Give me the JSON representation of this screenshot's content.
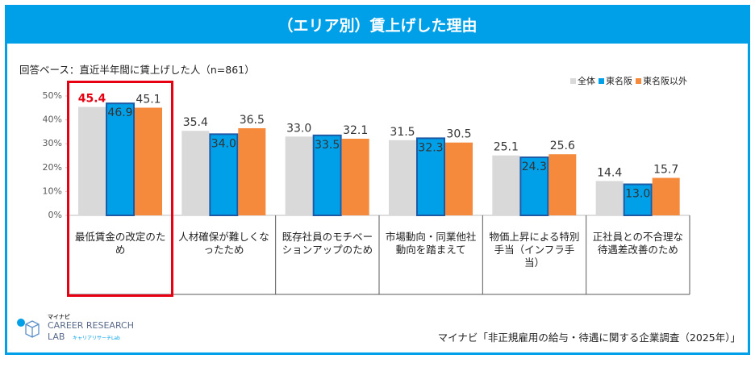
{
  "header": {
    "title": "（エリア別）賃上げした理由",
    "subtitle": "回答ベース：直近半年間に賃上げした人（n=861）"
  },
  "chart_data": {
    "type": "bar",
    "categories": [
      "最低賃金の改定のため",
      "人材確保が難しくなったため",
      "既存社員のモチベーションアップのため",
      "市場動向・同業他社動向を踏まえて",
      "物価上昇による特別手当（インフラ手当）",
      "正社員との不合理な待遇差改善のため"
    ],
    "series": [
      {
        "name": "全体",
        "color": "#d9d9d9",
        "values": [
          45.4,
          35.4,
          33.0,
          31.5,
          25.1,
          14.4
        ],
        "value_labels": [
          "45.4",
          "35.4",
          "33.0",
          "31.5",
          "25.1",
          "14.4"
        ],
        "label_position": "above"
      },
      {
        "name": "東名阪",
        "color": "#00a0e9",
        "edgecolor": "#1d5aa6",
        "values": [
          46.9,
          34.0,
          33.5,
          32.3,
          24.3,
          13.0
        ],
        "value_labels": [
          "46.9",
          "34.0",
          "33.5",
          "32.3",
          "24.3",
          "13.0"
        ],
        "label_position": "inside"
      },
      {
        "name": "東名阪以外",
        "color": "#f58a3c",
        "values": [
          45.1,
          36.5,
          32.1,
          30.5,
          25.6,
          15.7
        ],
        "value_labels": [
          "45.1",
          "36.5",
          "32.1",
          "30.5",
          "25.6",
          "15.7"
        ],
        "label_position": "above"
      }
    ],
    "ylim": [
      0,
      50
    ],
    "yticks": [
      {
        "value": 0,
        "label": "0%"
      },
      {
        "value": 10,
        "label": "10%"
      },
      {
        "value": 20,
        "label": "20%"
      },
      {
        "value": 30,
        "label": "30%"
      },
      {
        "value": 40,
        "label": "40%"
      },
      {
        "value": 50,
        "label": "50%"
      }
    ],
    "legend": "upper right"
  },
  "footer": {
    "logo_top": "マイナビ",
    "logo_main": "CAREER RESEARCH",
    "logo_lab": "LAB",
    "logo_sub": "キャリアリサーチLab",
    "source": "マイナビ「非正規雇用の給与・待遇に関する企業調査（2025年）」"
  }
}
